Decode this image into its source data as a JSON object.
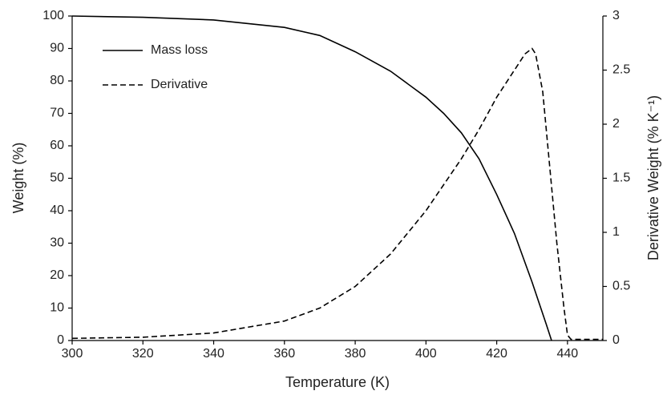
{
  "chart_data": {
    "type": "line",
    "xlabel": "Temperature (K)",
    "ylabel": "Weight (%)",
    "y2label": "Derivative Weight (% K⁻¹)",
    "xlim": [
      300,
      450
    ],
    "xticks": [
      300,
      320,
      340,
      360,
      380,
      400,
      420,
      440
    ],
    "ylim": [
      0,
      100
    ],
    "yticks": [
      0,
      10,
      20,
      30,
      40,
      50,
      60,
      70,
      80,
      90,
      100
    ],
    "y2lim": [
      0,
      3
    ],
    "y2ticks": [
      0,
      0.5,
      1,
      1.5,
      2,
      2.5,
      3
    ],
    "legend": "upper left",
    "series": [
      {
        "name": "Mass loss",
        "color": "#000000",
        "dash": "solid",
        "x": [
          300,
          320,
          340,
          360,
          370,
          380,
          390,
          400,
          405,
          410,
          415,
          420,
          425,
          430,
          434,
          435.5
        ],
        "values": [
          100,
          99.6,
          98.8,
          96.5,
          94,
          89,
          83,
          75,
          70,
          64,
          56,
          45,
          33,
          18,
          5,
          0
        ]
      },
      {
        "name": "Derivative",
        "color": "#000000",
        "dash": "dashed",
        "axis": "y2",
        "x": [
          300,
          320,
          340,
          360,
          370,
          380,
          390,
          400,
          410,
          415,
          420,
          425,
          428,
          430,
          431,
          433,
          435,
          437,
          439,
          440,
          441,
          450
        ],
        "values": [
          0.02,
          0.03,
          0.07,
          0.18,
          0.3,
          0.5,
          0.8,
          1.2,
          1.68,
          1.95,
          2.25,
          2.5,
          2.65,
          2.7,
          2.65,
          2.3,
          1.6,
          0.9,
          0.3,
          0.05,
          0.01,
          0.01
        ]
      }
    ]
  }
}
